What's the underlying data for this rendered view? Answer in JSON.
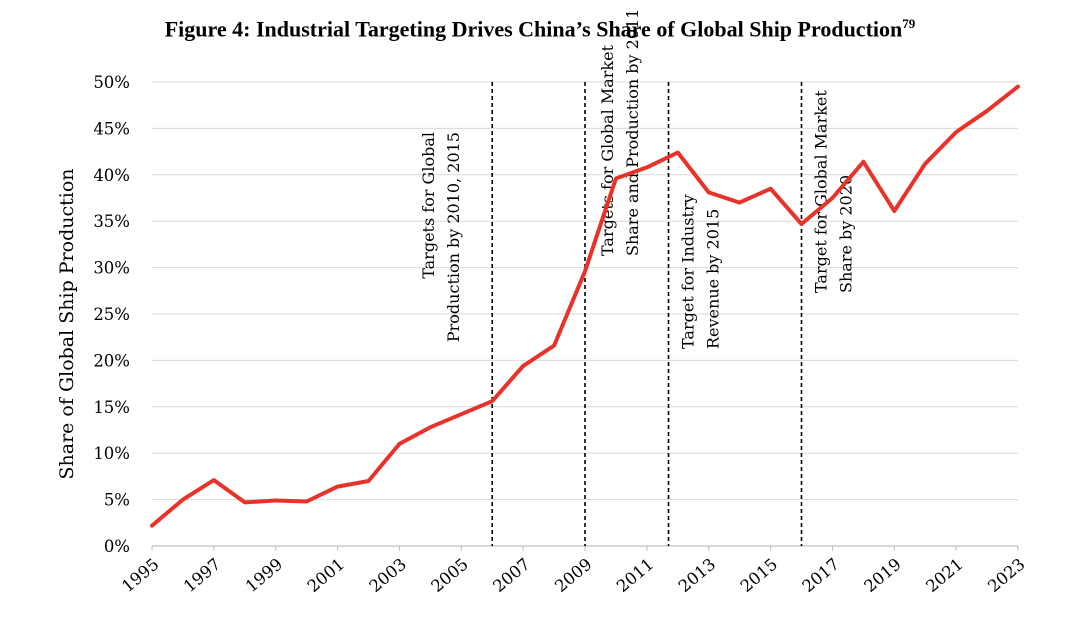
{
  "chart_data": {
    "type": "line",
    "title": "Figure 4:  Industrial Targeting Drives China’s Share of Global Ship Production",
    "title_footnote": "79",
    "xlabel": "",
    "ylabel": "Share of Global Ship Production",
    "xlim": [
      1995,
      2023
    ],
    "ylim": [
      0,
      50
    ],
    "x_ticks": [
      "1995",
      "1997",
      "1999",
      "2001",
      "2003",
      "2005",
      "2007",
      "2009",
      "2011",
      "2013",
      "2015",
      "2017",
      "2019",
      "2021",
      "2023"
    ],
    "y_ticks": [
      "0%",
      "5%",
      "10%",
      "15%",
      "20%",
      "25%",
      "30%",
      "35%",
      "40%",
      "45%",
      "50%"
    ],
    "grid": "horizontal",
    "line_color": "#e8332a",
    "series": [
      {
        "name": "",
        "x": [
          1995,
          1996,
          1997,
          1998,
          1999,
          2000,
          2001,
          2002,
          2003,
          2004,
          2005,
          2006,
          2007,
          2008,
          2009,
          2010,
          2011,
          2012,
          2013,
          2014,
          2015,
          2016,
          2017,
          2018,
          2019,
          2020,
          2021,
          2022,
          2023
        ],
        "values": [
          2.2,
          5.0,
          7.1,
          4.7,
          4.9,
          4.8,
          6.4,
          7.0,
          11.0,
          12.8,
          14.2,
          15.6,
          19.4,
          21.6,
          29.6,
          39.6,
          40.8,
          42.4,
          38.1,
          37.0,
          38.5,
          34.7,
          37.5,
          41.4,
          36.1,
          41.2,
          44.6,
          46.9,
          49.5
        ]
      }
    ],
    "annotations": [
      {
        "x": 2006,
        "lines": [
          "Targets for Global",
          "Production by 2010, 2015"
        ]
      },
      {
        "x": 2009,
        "lines": [
          "Targets for Global Market",
          "Share and Production by 2011"
        ]
      },
      {
        "x": 2011.7,
        "lines": [
          "Target for Industry",
          "Revenue by 2015"
        ]
      },
      {
        "x": 2016,
        "lines": [
          "Target for Global Market",
          "Share by 2020"
        ]
      }
    ]
  }
}
